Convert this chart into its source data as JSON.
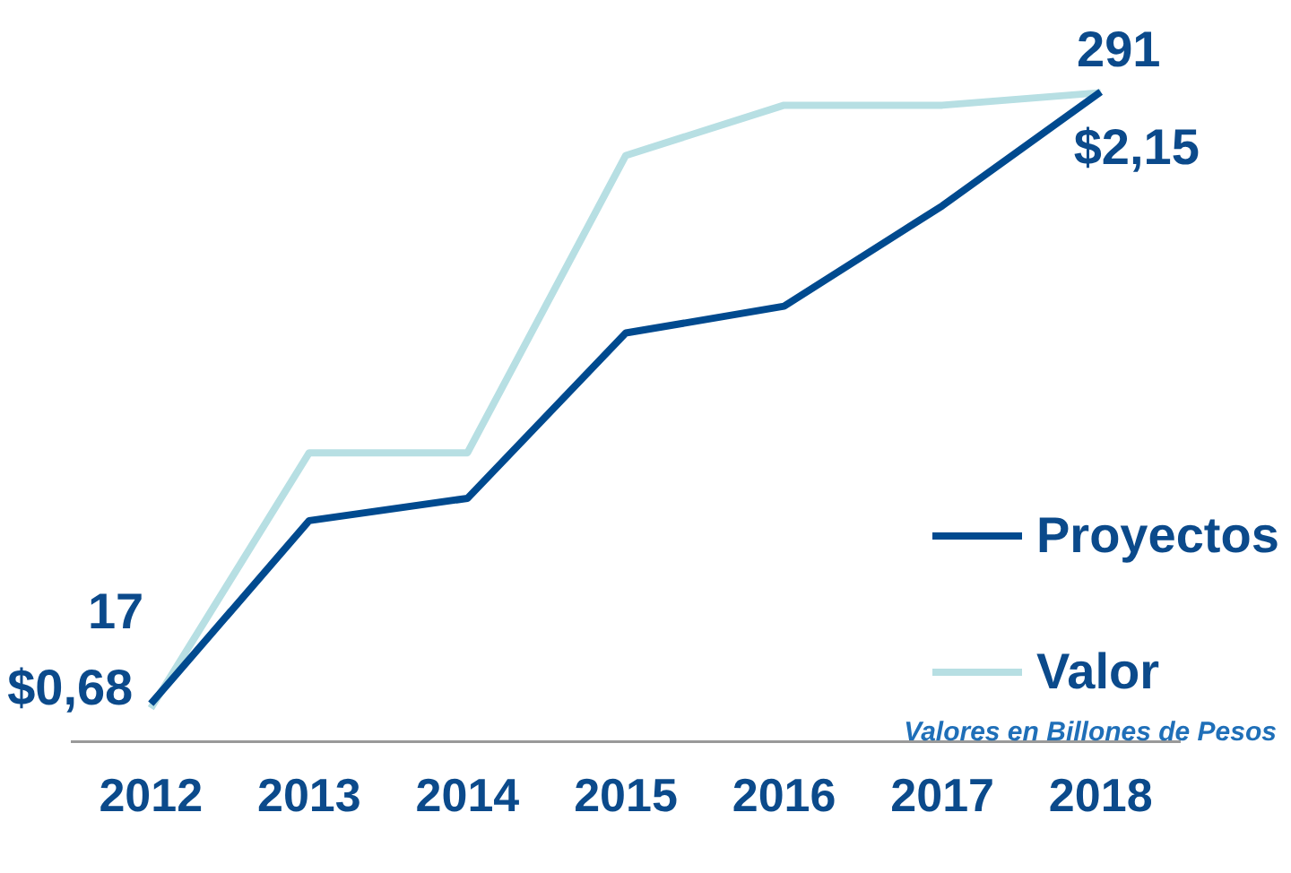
{
  "chart_data": {
    "type": "line",
    "categories": [
      "2012",
      "2013",
      "2014",
      "2015",
      "2016",
      "2017",
      "2018"
    ],
    "series": [
      {
        "name": "Proyectos",
        "color": "#004a8f",
        "values": [
          17,
          99,
          109,
          183,
          195,
          240,
          291
        ],
        "value_labels": [
          "17",
          null,
          null,
          null,
          null,
          null,
          "291"
        ]
      },
      {
        "name": "Valor",
        "color": "#b7dfe3",
        "axis": "y2",
        "values": [
          0.68,
          1.29,
          1.29,
          2.0,
          2.12,
          2.12,
          2.15
        ],
        "value_labels": [
          "$0,68",
          null,
          null,
          null,
          null,
          null,
          "$2,15"
        ]
      }
    ],
    "tick_labels": "x",
    "grid": false,
    "legend": "bottom right",
    "marker": "none",
    "line_style": "solid",
    "annotations": [
      "Valores en Billones de Pesos"
    ]
  }
}
